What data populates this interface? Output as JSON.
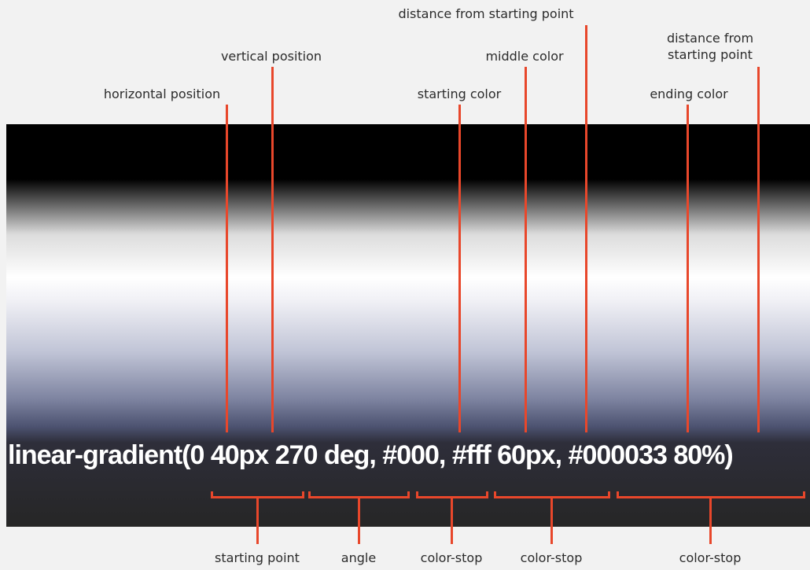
{
  "top_labels": {
    "horizontal_position": "horizontal position",
    "vertical_position": "vertical position",
    "starting_color": "starting color",
    "distance_middle": "distance from starting point",
    "middle_color": "middle color",
    "distance_end_line1": "distance from",
    "distance_end_line2": "starting point",
    "ending_color": "ending color"
  },
  "code": {
    "text": "linear-gradient(0 40px 270 deg, #000, #fff 60px, #000033 80%)"
  },
  "bottom_labels": {
    "starting_point": "starting point",
    "angle": "angle",
    "color_stop_1": "color-stop",
    "color_stop_2": "color-stop",
    "color_stop_3": "color-stop"
  },
  "colors": {
    "accent": "#e8472b",
    "background": "#f2f2f2",
    "text": "#2b2b2b"
  }
}
